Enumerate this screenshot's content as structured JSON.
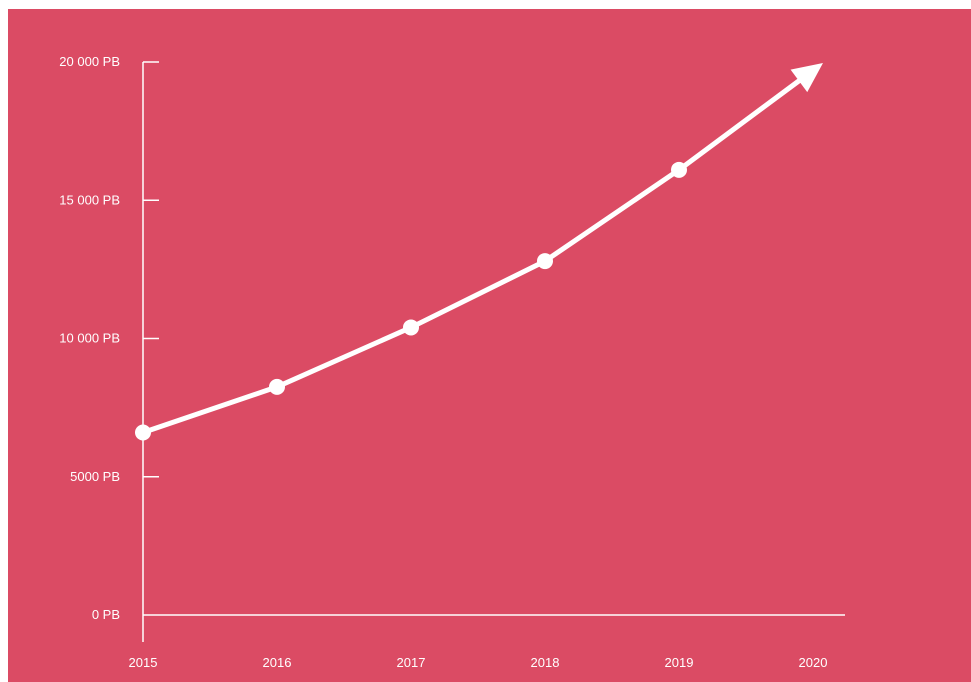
{
  "theme": {
    "background": "#db4b64",
    "foreground": "#ffffff"
  },
  "chart_data": {
    "type": "line",
    "title": "",
    "xlabel": "",
    "ylabel": "",
    "x": [
      2015,
      2016,
      2017,
      2018,
      2019,
      2020
    ],
    "x_tick_labels": [
      "2015",
      "2016",
      "2017",
      "2018",
      "2019",
      "2020"
    ],
    "y_tick_values": [
      0,
      5000,
      10000,
      15000,
      20000
    ],
    "y_tick_labels": [
      "0 PB",
      "5000 PB",
      "10 000 PB",
      "15 000 PB",
      "20 000 PB"
    ],
    "ylim": [
      0,
      20000
    ],
    "xlim": [
      2015,
      2020.25
    ],
    "grid": false,
    "series": [
      {
        "x": [
          2015,
          2016,
          2017,
          2018,
          2019
        ],
        "values": [
          6600,
          8250,
          10400,
          12800,
          16100
        ],
        "color": "#ffffff",
        "markers": true
      }
    ],
    "trend_arrow": {
      "from": [
        2019,
        16100
      ],
      "to": [
        2020,
        20000
      ]
    }
  }
}
